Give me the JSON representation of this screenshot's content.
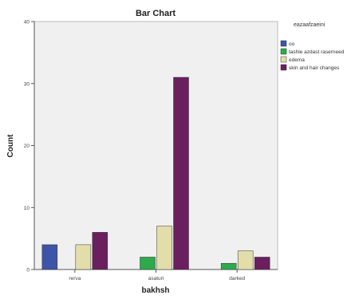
{
  "chart_data": {
    "type": "bar",
    "title": "Bar Chart",
    "xlabel": "bakhsh",
    "ylabel": "Count",
    "ylim": [
      0,
      40
    ],
    "yticks": [
      "0",
      "10",
      "20",
      "30",
      "40"
    ],
    "grid": false,
    "legend_title": "eazaafzaeini",
    "legend_position": "right",
    "categories": [
      "rerva",
      "asaturi",
      "darked"
    ],
    "series": [
      {
        "name": "oo",
        "color": "#3c55a8",
        "values": [
          4,
          0,
          0
        ]
      },
      {
        "name": "tashle azdast raserneed",
        "color": "#2daa4a",
        "values": [
          0,
          2,
          1
        ]
      },
      {
        "name": "edema",
        "color": "#e3ddaa",
        "values": [
          4,
          7,
          3
        ]
      },
      {
        "name": "skin and hair changes",
        "color": "#6a1f5f",
        "values": [
          6,
          31,
          2
        ]
      }
    ],
    "plot_background": "#f0f0f0"
  }
}
